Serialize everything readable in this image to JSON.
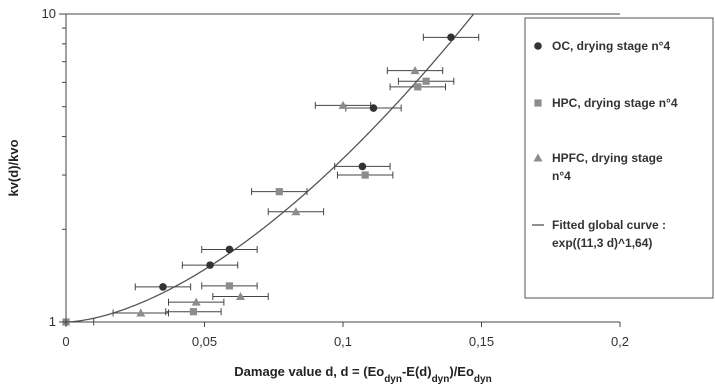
{
  "chart_data": {
    "type": "scatter",
    "x_axis": {
      "label_parts": [
        {
          "text": "Damage value d, d = (Eo",
          "shift": "normal"
        },
        {
          "text": "dyn",
          "shift": "sub"
        },
        {
          "text": "-E(d)",
          "shift": "normal"
        },
        {
          "text": "dyn",
          "shift": "sub"
        },
        {
          "text": ")/Eo",
          "shift": "normal"
        },
        {
          "text": "dyn",
          "shift": "sub"
        }
      ],
      "range": [
        0,
        0.2
      ],
      "ticks": [
        0,
        0.05,
        0.1,
        0.15,
        0.2
      ],
      "tick_labels": [
        "0",
        "0,05",
        "0,1",
        "0,15",
        "0,2"
      ]
    },
    "y_axis": {
      "label": "kv(d)/kvo",
      "scale": "log",
      "range": [
        1,
        10
      ],
      "ticks": [
        1,
        10
      ],
      "tick_labels": [
        "1",
        "10"
      ]
    },
    "grid": "horizontal major gridline at 10",
    "legend_position": "right",
    "series": [
      {
        "name": "OC, drying stage n°4",
        "marker": "circle",
        "color": "#333333",
        "points": [
          {
            "x": 0.035,
            "y": 1.3,
            "xerr": 0.01
          },
          {
            "x": 0.052,
            "y": 1.53,
            "xerr": 0.01
          },
          {
            "x": 0.059,
            "y": 1.72,
            "xerr": 0.01
          },
          {
            "x": 0.107,
            "y": 3.2,
            "xerr": 0.01
          },
          {
            "x": 0.111,
            "y": 4.95,
            "xerr": 0.01
          },
          {
            "x": 0.139,
            "y": 8.4,
            "xerr": 0.01
          }
        ]
      },
      {
        "name": "HPC, drying stage n°4",
        "marker": "square",
        "color": "#8c8c8c",
        "points": [
          {
            "x": 0.0,
            "y": 1.0,
            "xerr": 0.01
          },
          {
            "x": 0.046,
            "y": 1.08,
            "xerr": 0.01
          },
          {
            "x": 0.059,
            "y": 1.31,
            "xerr": 0.01
          },
          {
            "x": 0.077,
            "y": 2.65,
            "xerr": 0.01
          },
          {
            "x": 0.108,
            "y": 3.0,
            "xerr": 0.01
          },
          {
            "x": 0.127,
            "y": 5.8,
            "xerr": 0.01
          },
          {
            "x": 0.13,
            "y": 6.05,
            "xerr": 0.01
          }
        ]
      },
      {
        "name": "HPFC, drying stage n°4",
        "marker": "triangle",
        "color": "#8c8c8c",
        "points": [
          {
            "x": 0.027,
            "y": 1.07,
            "xerr": 0.01
          },
          {
            "x": 0.047,
            "y": 1.16,
            "xerr": 0.01
          },
          {
            "x": 0.063,
            "y": 1.21,
            "xerr": 0.01
          },
          {
            "x": 0.083,
            "y": 2.28,
            "xerr": 0.01
          },
          {
            "x": 0.1,
            "y": 5.05,
            "xerr": 0.01
          },
          {
            "x": 0.126,
            "y": 6.55,
            "xerr": 0.01
          }
        ]
      }
    ],
    "fitted_curve": {
      "name": "Fitted global curve : exp((11,3 d)^1,64)",
      "coef": 11.3,
      "exponent": 1.64,
      "color": "#555555"
    },
    "legend": {
      "entries": [
        {
          "lines": [
            "OC, drying stage n°4"
          ],
          "symbol": "circle",
          "color": "#333333"
        },
        {
          "lines": [
            "HPC, drying stage n°4"
          ],
          "symbol": "square",
          "color": "#8c8c8c"
        },
        {
          "lines": [
            "HPFC, drying stage",
            "n°4"
          ],
          "symbol": "triangle",
          "color": "#8c8c8c"
        },
        {
          "lines": [
            "Fitted global curve :",
            "exp((11,3 d)^1,64)"
          ],
          "symbol": "line",
          "color": "#555555"
        }
      ]
    }
  }
}
